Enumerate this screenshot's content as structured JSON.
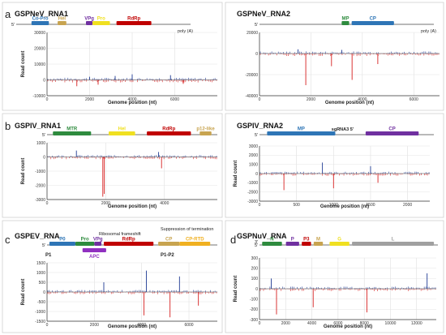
{
  "figure": {
    "panel_letters": [
      "a",
      "b",
      "c",
      "d"
    ]
  },
  "chart_data": [
    {
      "type": "bar",
      "panel": "a",
      "title": "GSPNeV_RNA1",
      "xlabel": "Genome position (nt)",
      "ylabel": "Read count",
      "xlim": [
        0,
        8000
      ],
      "ylim": [
        -10000,
        30000
      ],
      "xticks": [
        0,
        2000,
        4000,
        6000
      ],
      "yticks": [
        -10000,
        0,
        10000,
        20000,
        30000
      ],
      "grid": true,
      "genome": {
        "five": "5'",
        "poly": "poly (A)",
        "features": [
          {
            "name": "Co-Pro",
            "start": 700,
            "end": 1500,
            "color": "#2e75b6"
          },
          {
            "name": "Hel",
            "start": 1900,
            "end": 2300,
            "color": "#c8a450"
          },
          {
            "name": "VPg",
            "start": 3200,
            "end": 3500,
            "color": "#7030a0"
          },
          {
            "name": "Pro",
            "start": 3500,
            "end": 4300,
            "color": "#f0e020"
          },
          {
            "name": "RdRp",
            "start": 4600,
            "end": 6200,
            "color": "#c00000"
          }
        ]
      },
      "pos_peaks": [
        {
          "x": 4000,
          "y": 3500
        },
        {
          "x": 5800,
          "y": 3000
        },
        {
          "x": 3200,
          "y": 2500
        },
        {
          "x": 2000,
          "y": 2000
        }
      ],
      "neg_peaks": [
        {
          "x": 1400,
          "y": -4000
        },
        {
          "x": 2400,
          "y": -3000
        },
        {
          "x": 6400,
          "y": -2500
        }
      ]
    },
    {
      "type": "bar",
      "panel": "a",
      "title": "GSPNeV_RNA2",
      "xlabel": "Genome position (nt)",
      "ylabel": "",
      "xlim": [
        0,
        7000
      ],
      "ylim": [
        -40000,
        20000
      ],
      "xticks": [
        0,
        2000,
        4000,
        6000
      ],
      "yticks": [
        -40000,
        -20000,
        0,
        20000
      ],
      "grid": true,
      "genome": {
        "five": "5'",
        "poly": "poly (A)",
        "features": [
          {
            "name": "MP",
            "start": 3300,
            "end": 3600,
            "color": "#2e8b3e"
          },
          {
            "name": "CP",
            "start": 3700,
            "end": 5400,
            "color": "#2e75b6"
          }
        ]
      },
      "pos_peaks": [
        {
          "x": 1500,
          "y": 4000
        },
        {
          "x": 3200,
          "y": 3500
        }
      ],
      "neg_peaks": [
        {
          "x": 1800,
          "y": -30000
        },
        {
          "x": 3600,
          "y": -25000
        },
        {
          "x": 2800,
          "y": -12000
        },
        {
          "x": 4600,
          "y": -10000
        }
      ]
    },
    {
      "type": "bar",
      "panel": "b",
      "title": "GSPIV_RNA1",
      "xlabel": "Genome position (nt)",
      "ylabel": "Read count",
      "xlim": [
        0,
        5800
      ],
      "ylim": [
        -3000,
        1000
      ],
      "xticks": [
        0,
        2000,
        4000
      ],
      "yticks": [
        -3000,
        -2000,
        -1000,
        0,
        1000
      ],
      "grid": true,
      "genome": {
        "five": "5'",
        "features": [
          {
            "name": "MTR",
            "start": 200,
            "end": 1500,
            "color": "#2e8b3e"
          },
          {
            "name": "Hel",
            "start": 2100,
            "end": 3000,
            "color": "#f0e020"
          },
          {
            "name": "RdRp",
            "start": 3400,
            "end": 4900,
            "color": "#c00000"
          },
          {
            "name": "p12-like",
            "start": 5200,
            "end": 5600,
            "color": "#c8a450"
          }
        ]
      },
      "pos_peaks": [
        {
          "x": 1000,
          "y": 450
        },
        {
          "x": 3800,
          "y": 350
        }
      ],
      "neg_peaks": [
        {
          "x": 1900,
          "y": -2800
        },
        {
          "x": 1950,
          "y": -2600
        },
        {
          "x": 3900,
          "y": -800
        }
      ]
    },
    {
      "type": "bar",
      "panel": "b",
      "title": "GSPIV_RNA2",
      "xlabel": "Genome position (nt)",
      "ylabel": "Read count",
      "xlim": [
        0,
        2300
      ],
      "ylim": [
        -3000,
        3000
      ],
      "xticks": [
        0,
        500,
        1000,
        1500,
        2000
      ],
      "yticks": [
        -3000,
        -2000,
        -1000,
        0,
        1000,
        2000,
        3000
      ],
      "grid": true,
      "genome": {
        "five": "5'",
        "sg_label": "sgRNA3 5'",
        "features": [
          {
            "name": "MP",
            "start": 100,
            "end": 1000,
            "color": "#2e75b6"
          },
          {
            "name": "CP",
            "start": 1400,
            "end": 2100,
            "color": "#7030a0"
          }
        ]
      },
      "pos_peaks": [
        {
          "x": 850,
          "y": 1200
        },
        {
          "x": 1500,
          "y": 800
        }
      ],
      "neg_peaks": [
        {
          "x": 330,
          "y": -1800
        },
        {
          "x": 1000,
          "y": -1600
        },
        {
          "x": 1600,
          "y": -1000
        }
      ]
    },
    {
      "type": "bar",
      "panel": "c",
      "title": "GSPEV_RNA",
      "xlabel": "Genome position (nt)",
      "ylabel": "Read count",
      "xlim": [
        0,
        7200
      ],
      "ylim": [
        -1500,
        1500
      ],
      "xticks": [
        0,
        2000,
        4000,
        6000
      ],
      "yticks": [
        -1500,
        -1000,
        -500,
        0,
        500,
        1000,
        1500
      ],
      "grid": true,
      "annotations": [
        "Ribosomal frameshift",
        "Suppression of termination"
      ],
      "genome": {
        "five": "5'",
        "p1": "P1",
        "p1p2": "P1-P2",
        "features": [
          {
            "name": "P0",
            "start": 100,
            "end": 1200,
            "color": "#2e75b6"
          },
          {
            "name": "Pro",
            "start": 1200,
            "end": 2000,
            "color": "#2e8b3e"
          },
          {
            "name": "VPg",
            "start": 2000,
            "end": 2300,
            "color": "#7030a0"
          },
          {
            "name": "RdRp",
            "start": 2400,
            "end": 4500,
            "color": "#c00000"
          },
          {
            "name": "APC",
            "start": 1500,
            "end": 2500,
            "color": "#9030c0"
          },
          {
            "name": "CP",
            "start": 4700,
            "end": 5600,
            "color": "#c8a450"
          },
          {
            "name": "CP-RTD",
            "start": 5600,
            "end": 6900,
            "color": "#f0b020"
          }
        ]
      },
      "pos_peaks": [
        {
          "x": 4200,
          "y": 1100
        },
        {
          "x": 5600,
          "y": 800
        },
        {
          "x": 2400,
          "y": 500
        }
      ],
      "neg_peaks": [
        {
          "x": 5200,
          "y": -1300
        },
        {
          "x": 4100,
          "y": -1200
        },
        {
          "x": 6400,
          "y": -700
        }
      ]
    },
    {
      "type": "bar",
      "panel": "d",
      "title": "GSPNuV_RNA",
      "xlabel": "Genome position (nt)",
      "ylabel": "Read count",
      "xlim": [
        0,
        13500
      ],
      "ylim": [
        -300,
        300
      ],
      "xticks": [
        0,
        2000,
        4000,
        6000,
        8000,
        10000,
        12000
      ],
      "yticks": [
        -300,
        -200,
        -100,
        0,
        100,
        200,
        300
      ],
      "grid": true,
      "genome": {
        "three": "3'",
        "five": "5'",
        "features": [
          {
            "name": "N",
            "start": 200,
            "end": 1700,
            "color": "#2e8b3e"
          },
          {
            "name": "P",
            "start": 2000,
            "end": 3000,
            "color": "#7030a0"
          },
          {
            "name": "P3",
            "start": 3200,
            "end": 3900,
            "color": "#c00000"
          },
          {
            "name": "M",
            "start": 4100,
            "end": 4800,
            "color": "#c8a450"
          },
          {
            "name": "G",
            "start": 5300,
            "end": 6800,
            "color": "#f0e020"
          },
          {
            "name": "L",
            "start": 7000,
            "end": 13200,
            "color": "#a0a0a0"
          }
        ]
      },
      "pos_peaks": [
        {
          "x": 12800,
          "y": 150
        },
        {
          "x": 900,
          "y": 100
        }
      ],
      "neg_peaks": [
        {
          "x": 1300,
          "y": -250
        },
        {
          "x": 8200,
          "y": -230
        },
        {
          "x": 4100,
          "y": -180
        }
      ]
    }
  ]
}
